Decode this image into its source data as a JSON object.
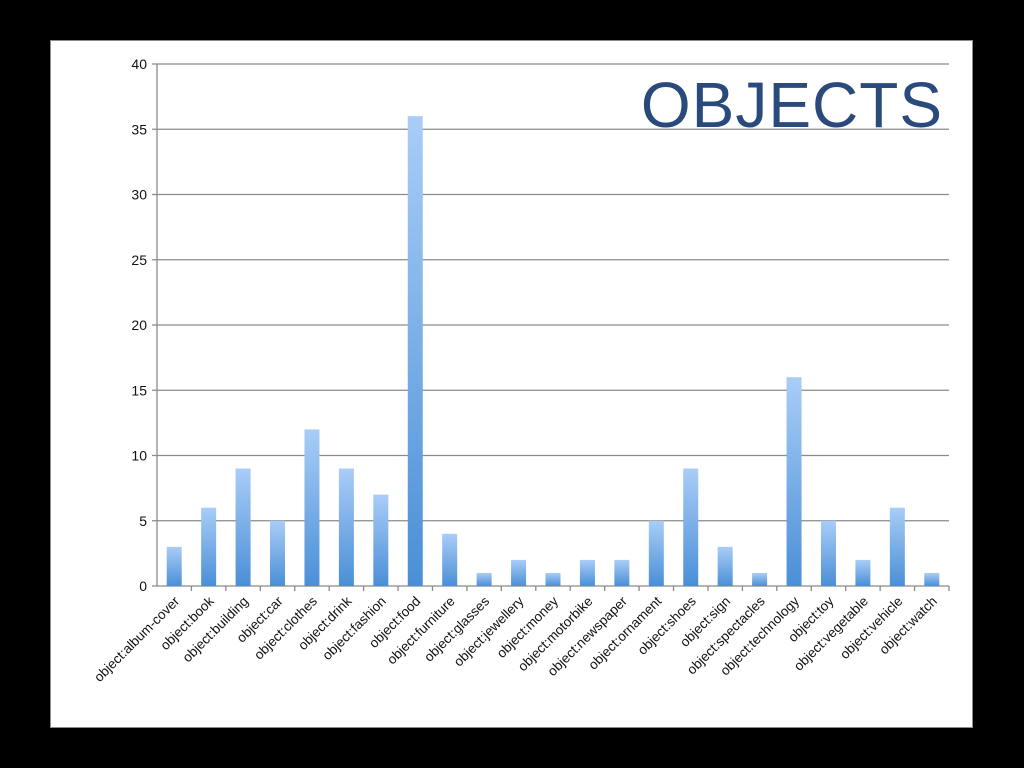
{
  "chart_data": {
    "type": "bar",
    "title": "OBJECTS",
    "xlabel": "",
    "ylabel": "",
    "ylim": [
      0,
      40
    ],
    "yticks": [
      0,
      5,
      10,
      15,
      20,
      25,
      30,
      35,
      40
    ],
    "grid": true,
    "legend": "none",
    "categories": [
      "object:album-cover",
      "object:book",
      "object:building",
      "object:car",
      "object:clothes",
      "object:drink",
      "object:fashion",
      "object:food",
      "object:furniture",
      "object:glasses",
      "object:jewellery",
      "object:money",
      "object:motorbike",
      "object:newspaper",
      "object:ornament",
      "object:shoes",
      "object:sign",
      "object:spectacles",
      "object:technology",
      "object:toy",
      "object:vegetable",
      "object:vehicle",
      "object:watch"
    ],
    "values": [
      3,
      6,
      9,
      5,
      12,
      9,
      7,
      36,
      4,
      1,
      2,
      1,
      2,
      2,
      5,
      9,
      3,
      1,
      16,
      5,
      2,
      6,
      1
    ],
    "colors": {
      "bar_top": "#a9cdf7",
      "bar_bottom": "#4a8fd6",
      "grid": "#8a8a8a",
      "title": "#2a4a7c",
      "background": "#ffffff",
      "slide_background": "#000000"
    }
  }
}
